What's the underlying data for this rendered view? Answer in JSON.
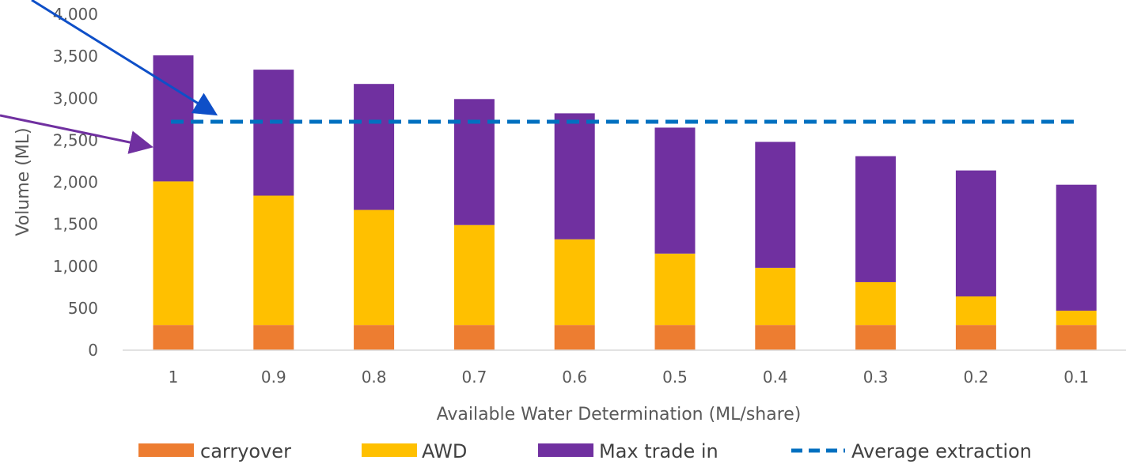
{
  "chart_data": {
    "type": "bar",
    "stacked": true,
    "categories": [
      "1",
      "0.9",
      "0.8",
      "0.7",
      "0.6",
      "0.5",
      "0.4",
      "0.3",
      "0.2",
      "0.1"
    ],
    "series": [
      {
        "name": "carryover",
        "color": "#ED7D31",
        "values": [
          300,
          300,
          300,
          300,
          300,
          300,
          300,
          300,
          300,
          300
        ]
      },
      {
        "name": "AWD",
        "color": "#FFC000",
        "values": [
          1710,
          1540,
          1370,
          1190,
          1020,
          850,
          680,
          510,
          340,
          170
        ]
      },
      {
        "name": "Max trade in",
        "color": "#7030A0",
        "values": [
          1500,
          1500,
          1500,
          1500,
          1500,
          1500,
          1500,
          1500,
          1500,
          1500
        ]
      }
    ],
    "line_series": {
      "name": "Average extraction",
      "color": "#0070C0",
      "style": "dashed",
      "value": 2720
    },
    "xlabel": "Available Water Determination (ML/share)",
    "ylabel": "Volume (ML)",
    "ylim": [
      0,
      4000
    ],
    "yticks": [
      "0",
      "500",
      "1,000",
      "1,500",
      "2,000",
      "2,500",
      "3,000",
      "3,500",
      "4,000"
    ],
    "ytick_values": [
      0,
      500,
      1000,
      1500,
      2000,
      2500,
      3000,
      3500,
      4000
    ],
    "grid": false,
    "legend_position": "bottom",
    "annotations": [
      {
        "type": "arrow",
        "color": "#0E4FC8",
        "points_to": "Average extraction"
      },
      {
        "type": "arrow",
        "color": "#7030A0",
        "points_to": "Max trade in"
      }
    ]
  }
}
